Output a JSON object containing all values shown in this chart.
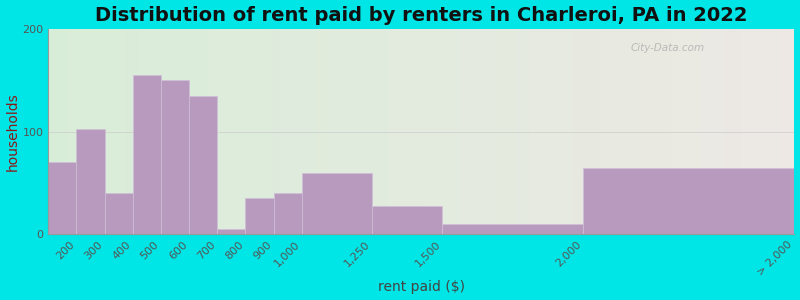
{
  "title": "Distribution of rent paid by renters in Charleroi, PA in 2022",
  "xlabel": "rent paid ($)",
  "ylabel": "households",
  "bar_color": "#b89abe",
  "bar_edge_color": "#d0c0d8",
  "ylim": [
    0,
    200
  ],
  "yticks": [
    0,
    100,
    200
  ],
  "background_outer": "#00e5e5",
  "background_inner_left": "#d8edd8",
  "background_inner_right": "#ede8e4",
  "title_fontsize": 14,
  "axis_label_fontsize": 10,
  "tick_fontsize": 8,
  "watermark": "City-Data.com",
  "title_color": "#111111",
  "ylabel_color": "#8b1a1a",
  "xlabel_color": "#444444",
  "bar_edges": [
    100,
    200,
    300,
    400,
    500,
    600,
    700,
    800,
    900,
    1000,
    1250,
    1500,
    2000,
    2750
  ],
  "values": [
    70,
    103,
    40,
    155,
    150,
    135,
    5,
    35,
    40,
    60,
    28,
    10,
    65
  ],
  "tick_labels": [
    "200",
    "300",
    "400",
    "500",
    "600",
    "700",
    "800",
    "900",
    "1,000",
    "1,250",
    "1,500",
    "2,000",
    "> 2,000"
  ],
  "tick_positions": [
    200,
    300,
    400,
    500,
    600,
    700,
    800,
    900,
    1000,
    1250,
    1500,
    2000,
    2750
  ]
}
